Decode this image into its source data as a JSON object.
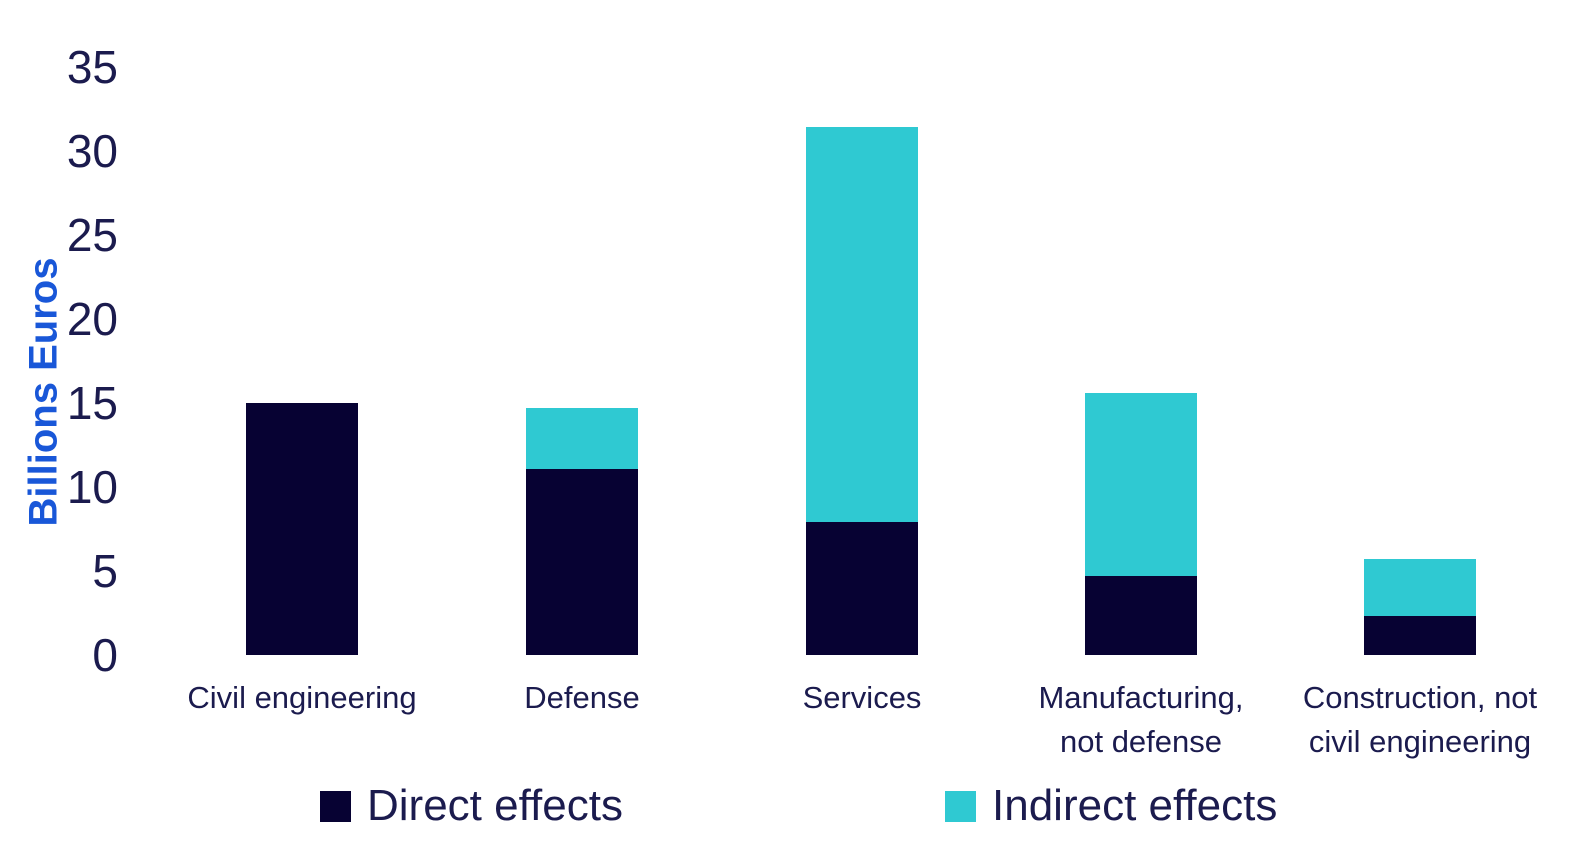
{
  "chart_data": {
    "type": "bar",
    "stacked": true,
    "title": "",
    "xlabel": "",
    "ylabel": "Billions Euros",
    "ylim": [
      0,
      35
    ],
    "yticks": [
      0,
      5,
      10,
      15,
      20,
      25,
      30,
      35
    ],
    "grid": false,
    "axis_lines": false,
    "legend_position": "bottom",
    "categories": [
      "Civil engineering",
      "Defense",
      "Services",
      "Manufacturing, not defense",
      "Construction, not civil engineering"
    ],
    "category_label_lines": [
      [
        "Civil engineering"
      ],
      [
        "Defense"
      ],
      [
        "Services"
      ],
      [
        "Manufacturing,",
        "not defense"
      ],
      [
        "Construction, not",
        "civil engineering"
      ]
    ],
    "series": [
      {
        "name": "Direct effects",
        "color": "#070233",
        "values": [
          15.0,
          11.1,
          7.9,
          4.7,
          2.3
        ]
      },
      {
        "name": "Indirect effects",
        "color": "#2FC9D2",
        "values": [
          0,
          3.6,
          23.5,
          10.9,
          3.4
        ]
      }
    ]
  },
  "legend": {
    "items": [
      {
        "label": "Direct effects",
        "color": "#070233"
      },
      {
        "label": "Indirect effects",
        "color": "#2FC9D2"
      }
    ]
  },
  "colors": {
    "background": "#FFFFFF",
    "axis_title_blue": "#1957D8",
    "text_navy": "#1B1B4E",
    "bar_navy": "#070233",
    "bar_teal": "#2FC9D2"
  }
}
